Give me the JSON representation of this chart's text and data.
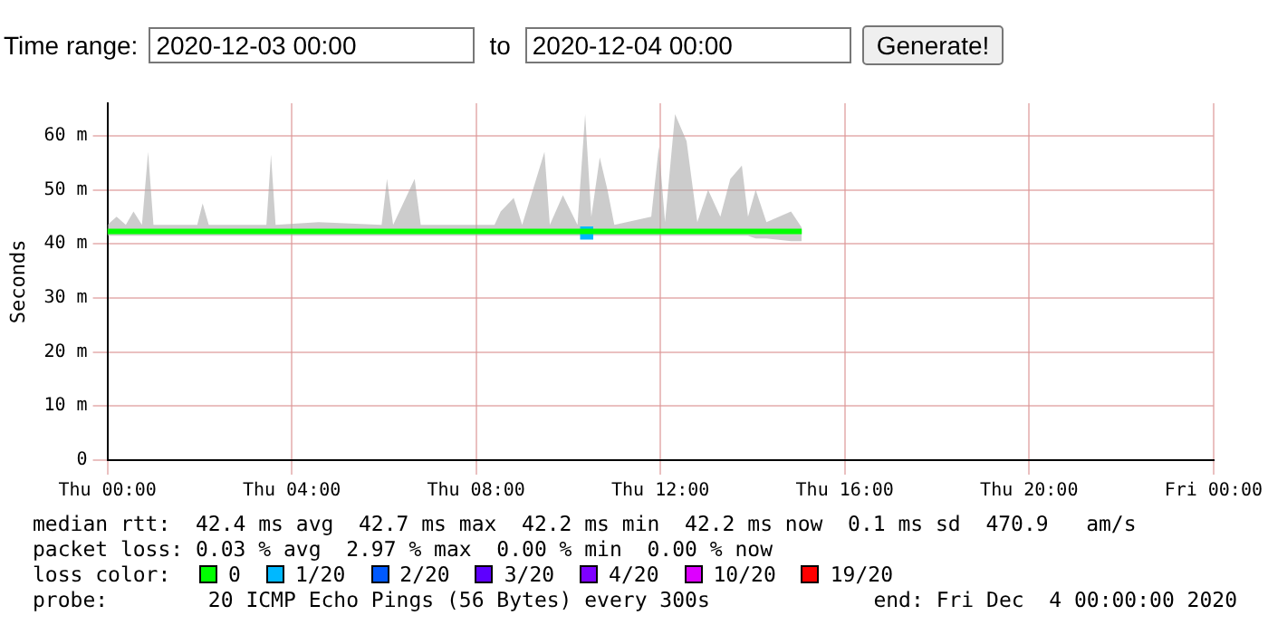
{
  "chart_data": {
    "type": "line",
    "ylabel": "Seconds",
    "legend_title": "loss color:",
    "legend": "bottom",
    "grid": true,
    "marker": "none",
    "line_style": "solid",
    "xlim": [
      "2020-12-03T00:00",
      "2020-12-04T00:00"
    ],
    "xticks": [
      {
        "value": "2020-12-03T00:00",
        "label": "Thu 00:00"
      },
      {
        "value": "2020-12-03T04:00",
        "label": "Thu 04:00"
      },
      {
        "value": "2020-12-03T08:00",
        "label": "Thu 08:00"
      },
      {
        "value": "2020-12-03T12:00",
        "label": "Thu 12:00"
      },
      {
        "value": "2020-12-03T16:00",
        "label": "Thu 16:00"
      },
      {
        "value": "2020-12-03T20:00",
        "label": "Thu 20:00"
      },
      {
        "value": "2020-12-04T00:00",
        "label": "Fri 00:00"
      }
    ],
    "ylim": [
      0,
      66
    ],
    "yticks": [
      0,
      {
        "value": 10,
        "label": "10 m"
      },
      {
        "value": 20,
        "label": "20 m"
      },
      {
        "value": 30,
        "label": "30 m"
      },
      {
        "value": 40,
        "label": "40 m"
      },
      {
        "value": 50,
        "label": "50 m"
      },
      {
        "value": 60,
        "label": "60 m"
      }
    ],
    "annotations": [
      "Time range:",
      "2020-12-03 00:00",
      "to",
      "2020-12-04 00:00",
      "Generate!",
      "median rtt:  42.4 ms avg  42.7 ms max  42.2 ms min  42.2 ms now  0.1 ms sd  470.9   am/s",
      "packet loss: 0.03 % avg  2.97 % max  0.00 % min  0.00 % now",
      "probe:        20 ICMP Echo Pings (56 Bytes) every 300s",
      "end: Fri Dec  4 00:00:00 2020"
    ],
    "series": [
      {
        "name": "0",
        "color": "#00ff00",
        "x": [
          "2020-12-03T00:00",
          "2020-12-03T00:12",
          "2020-12-03T00:24",
          "2020-12-03T00:34",
          "2020-12-03T00:45",
          "2020-12-03T00:53",
          "2020-12-03T01:00",
          "2020-12-03T01:57",
          "2020-12-03T02:04",
          "2020-12-03T02:12",
          "2020-12-03T03:27",
          "2020-12-03T03:33",
          "2020-12-03T03:39",
          "2020-12-03T04:35",
          "2020-12-03T05:57",
          "2020-12-03T06:04",
          "2020-12-03T06:12",
          "2020-12-03T06:40",
          "2020-12-03T06:48",
          "2020-12-03T08:24",
          "2020-12-03T08:32",
          "2020-12-03T08:49",
          "2020-12-03T09:00",
          "2020-12-03T09:29",
          "2020-12-03T09:36",
          "2020-12-03T09:53",
          "2020-12-03T10:12",
          "2020-12-03T10:22",
          "2020-12-03T10:30",
          "2020-12-03T10:41",
          "2020-12-03T10:51",
          "2020-12-03T11:00",
          "2020-12-03T11:48",
          "2020-12-03T11:58",
          "2020-12-03T12:06",
          "2020-12-03T12:19",
          "2020-12-03T12:34",
          "2020-12-03T12:48",
          "2020-12-03T13:02",
          "2020-12-03T13:18",
          "2020-12-03T13:31",
          "2020-12-03T13:46",
          "2020-12-03T13:54",
          "2020-12-03T14:04",
          "2020-12-03T14:18",
          "2020-12-03T14:50",
          "2020-12-03T15:04"
        ],
        "values": [
          42.3,
          42.3,
          42.3,
          42.3,
          42.3,
          42.3,
          42.3,
          42.3,
          42.3,
          42.3,
          42.3,
          42.3,
          42.3,
          42.3,
          42.3,
          42.3,
          42.3,
          42.3,
          42.3,
          42.3,
          42.3,
          42.3,
          42.3,
          42.3,
          42.3,
          42.3,
          42.3,
          42.3,
          42.3,
          42.3,
          42.3,
          42.3,
          42.3,
          42.3,
          42.3,
          42.3,
          42.3,
          42.3,
          42.3,
          42.3,
          42.3,
          42.3,
          42.3,
          42.3,
          42.3,
          42.3,
          42.3
        ],
        "lower": [
          41.5,
          41.5,
          41.5,
          41.5,
          41.5,
          41.5,
          41.5,
          41.5,
          41.5,
          41.5,
          41.5,
          41.5,
          41.5,
          41.5,
          41.5,
          41.5,
          41.5,
          41.5,
          41.5,
          41.5,
          41.5,
          41.5,
          41.5,
          41.5,
          41.5,
          41.5,
          41.5,
          41.5,
          41.5,
          41.5,
          41.5,
          41.5,
          41.5,
          41.5,
          41.5,
          41.5,
          41.5,
          41.5,
          41.5,
          41.5,
          41.5,
          41.5,
          41.5,
          41,
          41,
          40.5,
          40.5
        ],
        "upper": [
          43.5,
          45,
          43.5,
          46,
          43.5,
          57,
          43.5,
          43.5,
          47.5,
          43.5,
          43.5,
          56.5,
          43.5,
          44,
          43.5,
          52,
          43.5,
          52,
          43.5,
          43.5,
          46,
          48.5,
          43.5,
          57,
          43.5,
          49,
          43.5,
          64,
          45,
          56,
          50,
          43.5,
          45,
          58,
          44,
          64,
          59,
          44,
          50,
          45,
          52,
          54.5,
          45,
          50,
          44,
          46,
          43
        ]
      },
      {
        "name": "1/20",
        "color": "#00b8ff",
        "marker": "square",
        "x": [
          "2020-12-03T10:24"
        ],
        "values": [
          42
        ]
      },
      {
        "name": "2/20",
        "color": "#0059ff"
      },
      {
        "name": "3/20",
        "color": "#5e00ff"
      },
      {
        "name": "4/20",
        "color": "#7e00ff"
      },
      {
        "name": "10/20",
        "color": "#dd00ff"
      },
      {
        "name": "19/20",
        "color": "#ff0000"
      }
    ]
  }
}
